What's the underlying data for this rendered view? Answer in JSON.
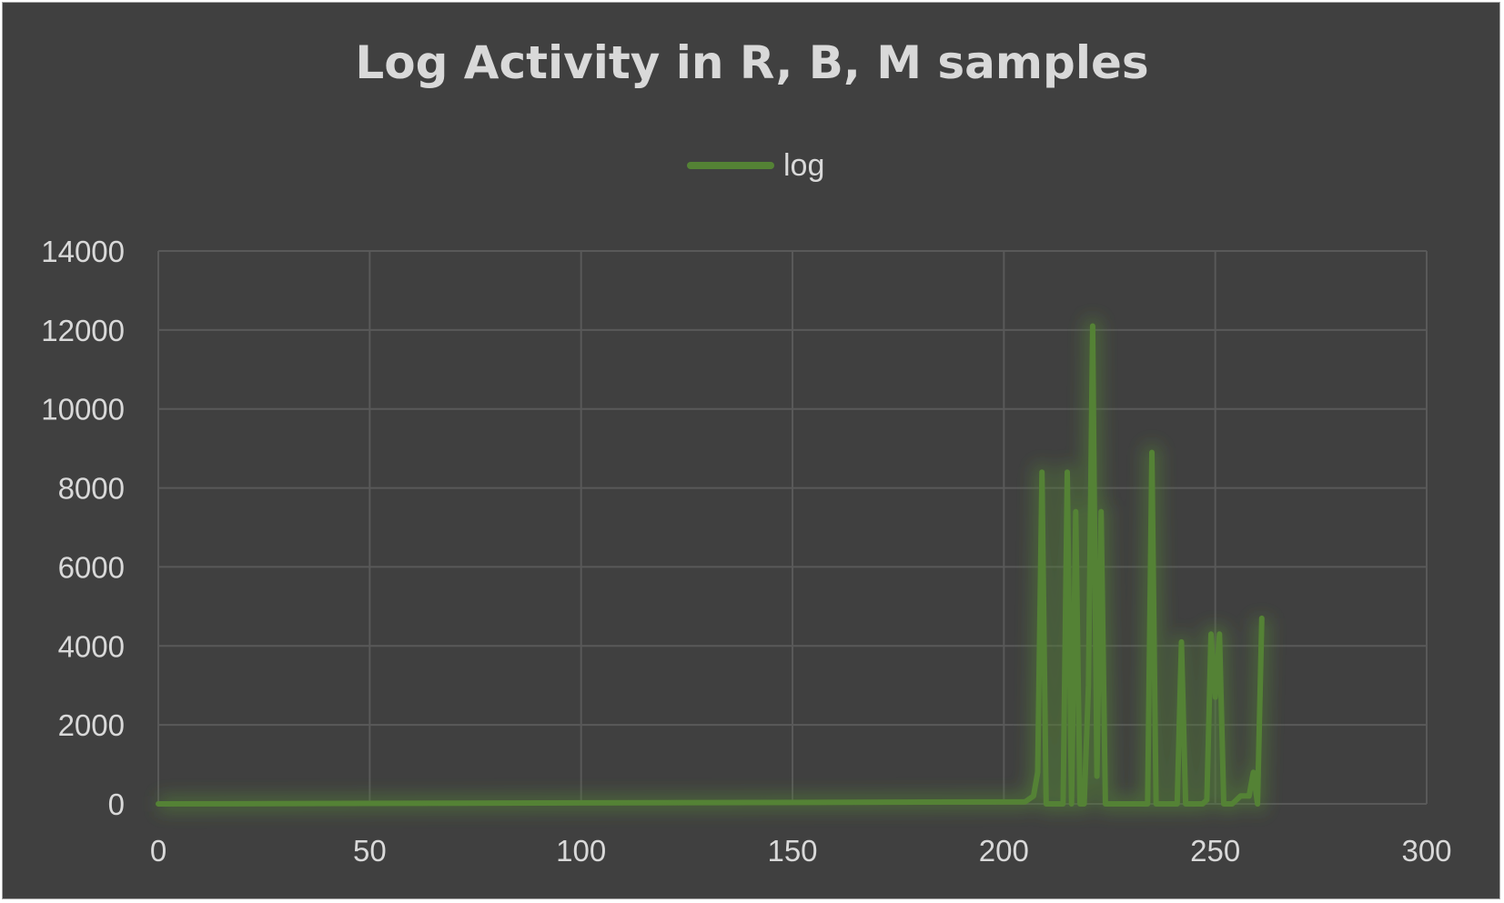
{
  "chart_data": {
    "type": "line",
    "title": "Log Activity in R, B, M samples",
    "xlabel": "",
    "ylabel": "",
    "xlim": [
      0,
      300
    ],
    "ylim": [
      0,
      14000
    ],
    "x_ticks": [
      "0",
      "50",
      "100",
      "150",
      "200",
      "250",
      "300"
    ],
    "y_ticks": [
      "0",
      "2000",
      "4000",
      "6000",
      "8000",
      "10000",
      "12000",
      "14000"
    ],
    "grid": true,
    "legend": "top-center",
    "colors": {
      "series": "#548235",
      "background": "#404040",
      "grid": "#595959",
      "text": "#d9d9d9"
    },
    "series": [
      {
        "name": "log",
        "x": [
          0,
          205,
          207,
          208,
          209,
          210,
          214,
          215,
          216,
          217,
          218,
          219,
          220,
          221,
          222,
          223,
          224,
          225,
          226,
          227,
          233,
          234,
          235,
          236,
          237,
          241,
          242,
          243,
          244,
          247,
          248,
          249,
          250,
          251,
          252,
          253,
          254,
          256,
          258,
          259,
          260,
          261
        ],
        "y": [
          0,
          50,
          200,
          800,
          8400,
          0,
          0,
          8400,
          0,
          7400,
          0,
          0,
          3000,
          12100,
          700,
          7400,
          0,
          0,
          0,
          0,
          0,
          0,
          8900,
          0,
          0,
          0,
          4100,
          0,
          0,
          0,
          100,
          4300,
          2700,
          4300,
          0,
          0,
          0,
          200,
          200,
          800,
          0,
          4700
        ]
      }
    ]
  }
}
